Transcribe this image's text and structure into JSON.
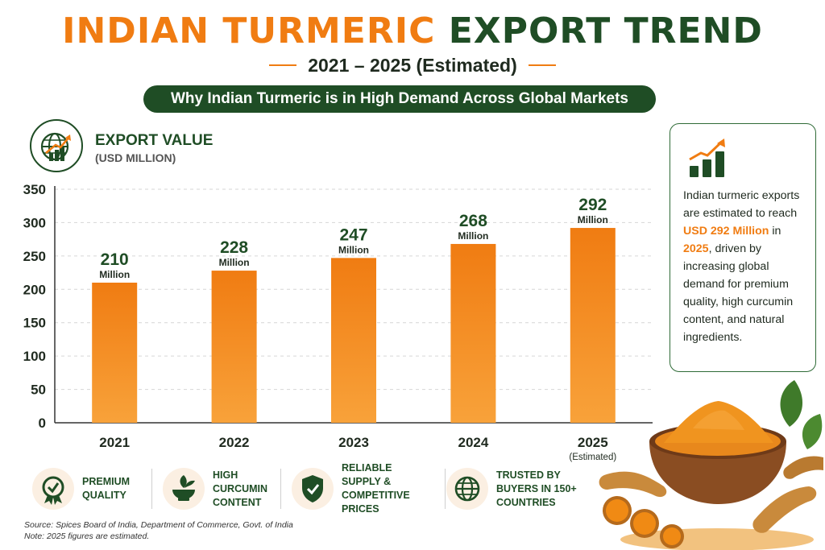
{
  "header": {
    "title_part1": "INDIAN TURMERIC",
    "title_part2": "EXPORT TREND",
    "subtitle": "2021 – 2025 (Estimated)",
    "banner": "Why Indian Turmeric is in High Demand Across Global Markets"
  },
  "export_value": {
    "icon": "globe-growth-icon",
    "title": "EXPORT VALUE",
    "unit": "(USD MILLION)"
  },
  "chart_data": {
    "type": "bar",
    "title": "EXPORT VALUE",
    "ylabel": "(USD MILLION)",
    "xlabel": "",
    "categories": [
      "2021",
      "2022",
      "2023",
      "2024",
      "2025"
    ],
    "category_notes": [
      "",
      "",
      "",
      "",
      "(Estimated)"
    ],
    "values": [
      210,
      228,
      247,
      268,
      292
    ],
    "value_unit": "Million",
    "ylim": [
      0,
      350
    ],
    "yticks": [
      0,
      50,
      100,
      150,
      200,
      250,
      300,
      350
    ],
    "grid": true,
    "bar_color": "#f5901e",
    "bar_color_dark": "#f07c12"
  },
  "side_card": {
    "icon": "bar-growth-icon",
    "text_before": "Indian turmeric exports are estimated to reach",
    "highlight_amount": "USD 292 Million",
    "connector": "in",
    "highlight_year": "2025",
    "text_after": ", driven by increasing global demand for premium quality, high curcumin content, and natural ingredients."
  },
  "features": [
    {
      "icon": "quality-badge-icon",
      "label": "PREMIUM QUALITY"
    },
    {
      "icon": "mortar-leaf-icon",
      "label": "HIGH CURCUMIN CONTENT"
    },
    {
      "icon": "shield-check-icon",
      "label": "RELIABLE SUPPLY & COMPETITIVE PRICES"
    },
    {
      "icon": "globe-icon",
      "label": "TRUSTED BY BUYERS IN 150+ COUNTRIES"
    }
  ],
  "source": {
    "line1": "Source: Spices Board of India, Department of Commerce, Govt. of India",
    "line2": "Note: 2025 figures are estimated."
  },
  "colors": {
    "orange": "#f07c12",
    "green": "#1f4d25"
  },
  "illustration": "turmeric-bowl-image"
}
